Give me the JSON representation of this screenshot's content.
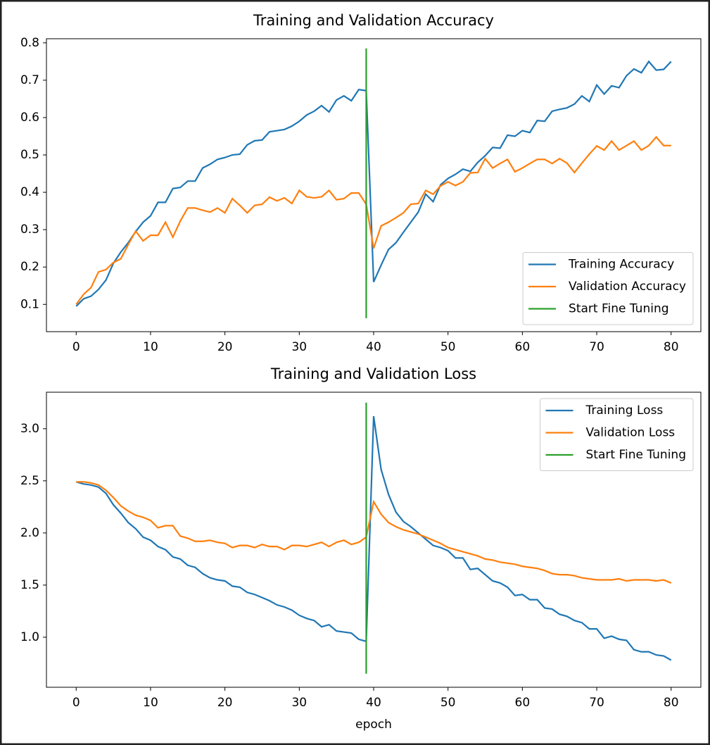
{
  "chart_data": [
    {
      "type": "line",
      "title": "Training and Validation Accuracy",
      "x": [
        0,
        1,
        2,
        3,
        4,
        5,
        6,
        7,
        8,
        9,
        10,
        11,
        12,
        13,
        14,
        15,
        16,
        17,
        18,
        19,
        20,
        21,
        22,
        23,
        24,
        25,
        26,
        27,
        28,
        29,
        30,
        31,
        32,
        33,
        34,
        35,
        36,
        37,
        38,
        39,
        40,
        41,
        42,
        43,
        44,
        45,
        46,
        47,
        48,
        49,
        50,
        51,
        52,
        53,
        54,
        55,
        56,
        57,
        58,
        59,
        60,
        61,
        62,
        63,
        64,
        65,
        66,
        67,
        68,
        69,
        70,
        71,
        72,
        73,
        74,
        75,
        76,
        77,
        78,
        79,
        80
      ],
      "xlim": [
        -4,
        84
      ],
      "xticks": [
        0,
        10,
        20,
        30,
        40,
        50,
        60,
        70,
        80
      ],
      "ylim": [
        0.027,
        0.811
      ],
      "yticks": [
        0.1,
        0.2,
        0.3,
        0.4,
        0.5,
        0.6,
        0.7,
        0.8
      ],
      "legend": "lower right",
      "series": [
        {
          "name": "Training Accuracy",
          "color": "#1f77b4",
          "values": [
            0.095,
            0.115,
            0.122,
            0.14,
            0.165,
            0.21,
            0.24,
            0.265,
            0.295,
            0.32,
            0.337,
            0.373,
            0.373,
            0.41,
            0.413,
            0.43,
            0.43,
            0.465,
            0.475,
            0.488,
            0.493,
            0.5,
            0.502,
            0.527,
            0.538,
            0.54,
            0.562,
            0.565,
            0.568,
            0.577,
            0.59,
            0.607,
            0.617,
            0.632,
            0.615,
            0.647,
            0.658,
            0.645,
            0.675,
            0.672,
            0.16,
            0.205,
            0.247,
            0.265,
            0.293,
            0.32,
            0.347,
            0.395,
            0.375,
            0.42,
            0.437,
            0.448,
            0.462,
            0.456,
            0.48,
            0.498,
            0.52,
            0.518,
            0.553,
            0.55,
            0.565,
            0.56,
            0.592,
            0.59,
            0.617,
            0.622,
            0.626,
            0.636,
            0.658,
            0.643,
            0.687,
            0.663,
            0.685,
            0.68,
            0.712,
            0.73,
            0.72,
            0.75,
            0.727,
            0.729,
            0.75
          ]
        },
        {
          "name": "Validation Accuracy",
          "color": "#ff7f0e",
          "values": [
            0.1,
            0.127,
            0.145,
            0.187,
            0.193,
            0.212,
            0.222,
            0.26,
            0.296,
            0.27,
            0.285,
            0.285,
            0.32,
            0.28,
            0.323,
            0.358,
            0.358,
            0.352,
            0.347,
            0.358,
            0.345,
            0.383,
            0.365,
            0.345,
            0.365,
            0.368,
            0.387,
            0.377,
            0.385,
            0.37,
            0.405,
            0.388,
            0.385,
            0.388,
            0.405,
            0.38,
            0.383,
            0.398,
            0.398,
            0.368,
            0.25,
            0.31,
            0.32,
            0.332,
            0.345,
            0.368,
            0.37,
            0.405,
            0.395,
            0.417,
            0.428,
            0.418,
            0.428,
            0.452,
            0.453,
            0.49,
            0.465,
            0.477,
            0.488,
            0.455,
            0.465,
            0.477,
            0.488,
            0.488,
            0.477,
            0.49,
            0.478,
            0.453,
            0.478,
            0.502,
            0.524,
            0.513,
            0.537,
            0.513,
            0.525,
            0.537,
            0.513,
            0.525,
            0.548,
            0.525,
            0.525
          ]
        },
        {
          "name": "Start Fine Tuning",
          "color": "#2ca02c",
          "x": [
            39,
            39
          ],
          "values": [
            0.063,
            0.785
          ]
        }
      ]
    },
    {
      "type": "line",
      "title": "Training and Validation Loss",
      "xlabel": "epoch",
      "x": [
        0,
        1,
        2,
        3,
        4,
        5,
        6,
        7,
        8,
        9,
        10,
        11,
        12,
        13,
        14,
        15,
        16,
        17,
        18,
        19,
        20,
        21,
        22,
        23,
        24,
        25,
        26,
        27,
        28,
        29,
        30,
        31,
        32,
        33,
        34,
        35,
        36,
        37,
        38,
        39,
        40,
        41,
        42,
        43,
        44,
        45,
        46,
        47,
        48,
        49,
        50,
        51,
        52,
        53,
        54,
        55,
        56,
        57,
        58,
        59,
        60,
        61,
        62,
        63,
        64,
        65,
        66,
        67,
        68,
        69,
        70,
        71,
        72,
        73,
        74,
        75,
        76,
        77,
        78,
        79,
        80
      ],
      "xlim": [
        -4,
        84
      ],
      "xticks": [
        0,
        10,
        20,
        30,
        40,
        50,
        60,
        70,
        80
      ],
      "ylim": [
        0.52,
        3.35
      ],
      "yticks": [
        {
          "value": 1,
          "label": "1.0"
        },
        1.5,
        {
          "value": 2,
          "label": "2.0"
        },
        2.5,
        {
          "value": 3,
          "label": "3.0"
        }
      ],
      "legend": "upper right",
      "series": [
        {
          "name": "Training Loss",
          "color": "#1f77b4",
          "values": [
            2.49,
            2.47,
            2.46,
            2.44,
            2.38,
            2.27,
            2.19,
            2.1,
            2.04,
            1.96,
            1.93,
            1.87,
            1.84,
            1.77,
            1.75,
            1.69,
            1.67,
            1.61,
            1.57,
            1.55,
            1.54,
            1.49,
            1.48,
            1.43,
            1.41,
            1.38,
            1.35,
            1.31,
            1.29,
            1.26,
            1.21,
            1.18,
            1.16,
            1.1,
            1.12,
            1.06,
            1.05,
            1.04,
            0.98,
            0.96,
            3.12,
            2.61,
            2.37,
            2.2,
            2.11,
            2.06,
            2.0,
            1.94,
            1.88,
            1.86,
            1.83,
            1.76,
            1.76,
            1.65,
            1.66,
            1.6,
            1.54,
            1.52,
            1.48,
            1.4,
            1.41,
            1.36,
            1.36,
            1.28,
            1.27,
            1.22,
            1.2,
            1.16,
            1.14,
            1.08,
            1.08,
            0.99,
            1.01,
            0.98,
            0.97,
            0.88,
            0.86,
            0.86,
            0.83,
            0.82,
            0.78
          ]
        },
        {
          "name": "Validation Loss",
          "color": "#ff7f0e",
          "values": [
            2.49,
            2.49,
            2.48,
            2.46,
            2.41,
            2.34,
            2.26,
            2.21,
            2.17,
            2.15,
            2.12,
            2.05,
            2.07,
            2.07,
            1.97,
            1.95,
            1.92,
            1.92,
            1.93,
            1.91,
            1.9,
            1.86,
            1.88,
            1.88,
            1.86,
            1.89,
            1.87,
            1.87,
            1.84,
            1.88,
            1.88,
            1.87,
            1.89,
            1.91,
            1.87,
            1.91,
            1.93,
            1.89,
            1.91,
            1.96,
            2.3,
            2.18,
            2.1,
            2.06,
            2.03,
            2.01,
            1.99,
            1.96,
            1.93,
            1.9,
            1.86,
            1.84,
            1.82,
            1.8,
            1.78,
            1.75,
            1.74,
            1.72,
            1.71,
            1.7,
            1.68,
            1.67,
            1.66,
            1.64,
            1.61,
            1.6,
            1.6,
            1.59,
            1.57,
            1.56,
            1.55,
            1.55,
            1.55,
            1.56,
            1.54,
            1.55,
            1.55,
            1.55,
            1.54,
            1.55,
            1.52
          ]
        },
        {
          "name": "Start Fine Tuning",
          "color": "#2ca02c",
          "x": [
            39,
            39
          ],
          "values": [
            0.65,
            3.25
          ]
        }
      ]
    }
  ]
}
